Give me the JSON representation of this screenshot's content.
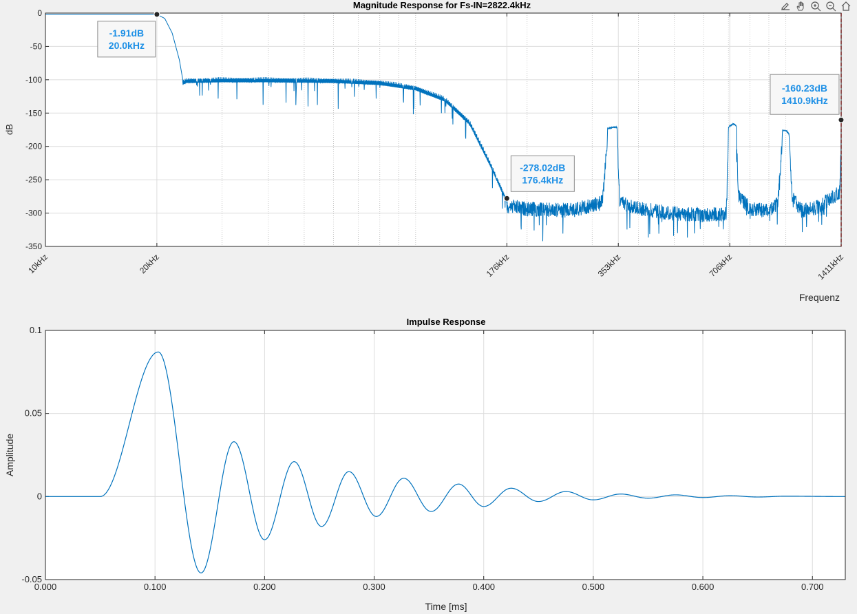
{
  "chart_data": [
    {
      "type": "line",
      "title": "Magnitude Response for Fs-IN=2822.4kHz",
      "xlabel": "Frequenz",
      "ylabel": "dB",
      "x_scale": "log",
      "xlim_khz": [
        10,
        1411.2
      ],
      "ylim": [
        -350,
        0
      ],
      "y_ticks": [
        0,
        -50,
        -100,
        -150,
        -200,
        -250,
        -300,
        -350
      ],
      "x_ticks": [
        {
          "value_khz": 10,
          "label": "10kHz"
        },
        {
          "value_khz": 20,
          "label": "20kHz"
        },
        {
          "value_khz": 176.4,
          "label": "176kHz"
        },
        {
          "value_khz": 352.8,
          "label": "353kHz"
        },
        {
          "value_khz": 705.6,
          "label": "706kHz"
        },
        {
          "value_khz": 1411.2,
          "label": "1411kHz"
        }
      ],
      "minor_x_ticks_khz": [
        30,
        40,
        50,
        60,
        70,
        80,
        90,
        100,
        200,
        300,
        400,
        500,
        600,
        700,
        800,
        900,
        1000
      ],
      "grid": true,
      "line_color": "#0072bd",
      "marker_line_color": "#ff0000",
      "marker_line_khz": 1411.2,
      "envelope_khz_db": [
        [
          10,
          -1.91
        ],
        [
          20,
          -1.91
        ],
        [
          21,
          -8
        ],
        [
          22,
          -30
        ],
        [
          23,
          -70
        ],
        [
          23.5,
          -100
        ],
        [
          24,
          -97
        ],
        [
          30,
          -96
        ],
        [
          40,
          -96
        ],
        [
          60,
          -97
        ],
        [
          80,
          -100
        ],
        [
          100,
          -108
        ],
        [
          120,
          -125
        ],
        [
          140,
          -160
        ],
        [
          160,
          -225
        ],
        [
          176.4,
          -278.02
        ],
        [
          200,
          -283
        ],
        [
          260,
          -285
        ],
        [
          300,
          -278
        ],
        [
          320,
          -272
        ],
        [
          330,
          -172
        ],
        [
          345,
          -170
        ],
        [
          350,
          -170
        ],
        [
          356,
          -272
        ],
        [
          400,
          -282
        ],
        [
          500,
          -290
        ],
        [
          600,
          -292
        ],
        [
          690,
          -290
        ],
        [
          700,
          -170
        ],
        [
          720,
          -165
        ],
        [
          735,
          -168
        ],
        [
          745,
          -262
        ],
        [
          800,
          -282
        ],
        [
          900,
          -286
        ],
        [
          950,
          -275
        ],
        [
          980,
          -175
        ],
        [
          1000,
          -175
        ],
        [
          1020,
          -180
        ],
        [
          1040,
          -265
        ],
        [
          1100,
          -285
        ],
        [
          1200,
          -282
        ],
        [
          1300,
          -270
        ],
        [
          1400,
          -258
        ],
        [
          1410.9,
          -160.23
        ]
      ],
      "datatips": [
        {
          "x_khz": 20.0,
          "y_db": -1.91,
          "label_db": "-1.91dB",
          "label_freq": "20.0kHz"
        },
        {
          "x_khz": 176.4,
          "y_db": -278.02,
          "label_db": "-278.02dB",
          "label_freq": "176.4kHz"
        },
        {
          "x_khz": 1410.9,
          "y_db": -160.23,
          "label_db": "-160.23dB",
          "label_freq": "1410.9kHz"
        }
      ]
    },
    {
      "type": "line",
      "title": "Impulse Response",
      "xlabel": "Time [ms]",
      "ylabel": "Amplitude",
      "xlim": [
        0,
        0.73
      ],
      "ylim": [
        -0.05,
        0.1
      ],
      "x_ticks": [
        {
          "value": 0.0,
          "label": "0.000"
        },
        {
          "value": 0.1,
          "label": "0.100"
        },
        {
          "value": 0.2,
          "label": "0.200"
        },
        {
          "value": 0.3,
          "label": "0.300"
        },
        {
          "value": 0.4,
          "label": "0.400"
        },
        {
          "value": 0.5,
          "label": "0.500"
        },
        {
          "value": 0.6,
          "label": "0.600"
        },
        {
          "value": 0.7,
          "label": "0.700"
        }
      ],
      "y_ticks": [
        {
          "value": 0.1,
          "label": "0.1"
        },
        {
          "value": 0.05,
          "label": "0.05"
        },
        {
          "value": 0,
          "label": "0"
        },
        {
          "value": -0.05,
          "label": "-0.05"
        }
      ],
      "grid": true,
      "line_color": "#0072bd",
      "extrema_ms_amp": [
        [
          0.0,
          0.0
        ],
        [
          0.05,
          0.0
        ],
        [
          0.103,
          0.087
        ],
        [
          0.142,
          -0.046
        ],
        [
          0.172,
          0.033
        ],
        [
          0.2,
          -0.026
        ],
        [
          0.227,
          0.021
        ],
        [
          0.252,
          -0.018
        ],
        [
          0.277,
          0.015
        ],
        [
          0.302,
          -0.012
        ],
        [
          0.327,
          0.011
        ],
        [
          0.352,
          -0.009
        ],
        [
          0.377,
          0.0075
        ],
        [
          0.4,
          -0.006
        ],
        [
          0.425,
          0.005
        ],
        [
          0.45,
          -0.003
        ],
        [
          0.475,
          0.003
        ],
        [
          0.5,
          -0.002
        ],
        [
          0.525,
          0.0015
        ],
        [
          0.55,
          -0.001
        ],
        [
          0.575,
          0.001
        ],
        [
          0.6,
          -0.0006
        ],
        [
          0.625,
          0.0005
        ],
        [
          0.65,
          -0.0003
        ],
        [
          0.675,
          0.0002
        ],
        [
          0.73,
          0.0
        ]
      ]
    }
  ],
  "toolbar": {
    "icons": [
      "export-icon",
      "pan-hand-icon",
      "zoom-in-icon",
      "zoom-out-icon",
      "home-icon"
    ]
  }
}
